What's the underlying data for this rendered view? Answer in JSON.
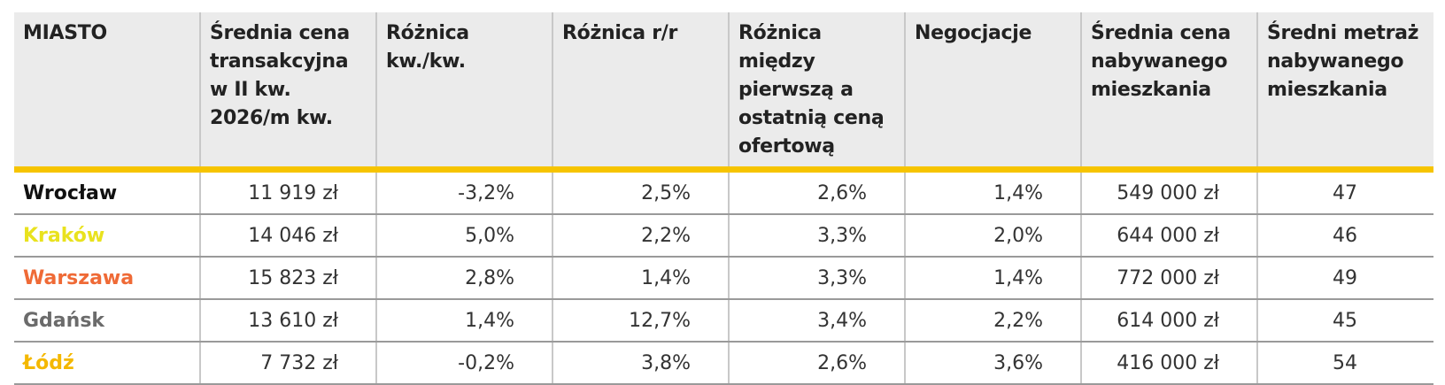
{
  "table": {
    "header": [
      "MIASTO",
      "Średnia cena transakcyjna w II kw. 2026/m kw.",
      "Różnica kw./kw.",
      "Różnica r/r",
      "Różnica między pierwszą a ostatnią ceną ofertową",
      "Negocjacje",
      "Średnia cena nabywanego mieszkania",
      "Średni metraż nabywanego mieszkania"
    ],
    "rows": [
      [
        "Wrocław",
        "11 919 zł",
        "-3,2%",
        "2,5%",
        "2,6%",
        "1,4%",
        "549 000 zł",
        "47"
      ],
      [
        "Kraków",
        "14 046 zł",
        "5,0%",
        "2,2%",
        "3,3%",
        "2,0%",
        "644 000 zł",
        "46"
      ],
      [
        "Warszawa",
        "15 823 zł",
        "2,8%",
        "1,4%",
        "3,3%",
        "1,4%",
        "772 000 zł",
        "49"
      ],
      [
        "Gdańsk",
        "13 610 zł",
        "1,4%",
        "12,7%",
        "3,4%",
        "2,2%",
        "614 000 zł",
        "45"
      ],
      [
        "Łódź",
        "7 732 zł",
        "-0,2%",
        "3,8%",
        "2,6%",
        "3,6%",
        "416 000 zł",
        "54"
      ]
    ]
  }
}
